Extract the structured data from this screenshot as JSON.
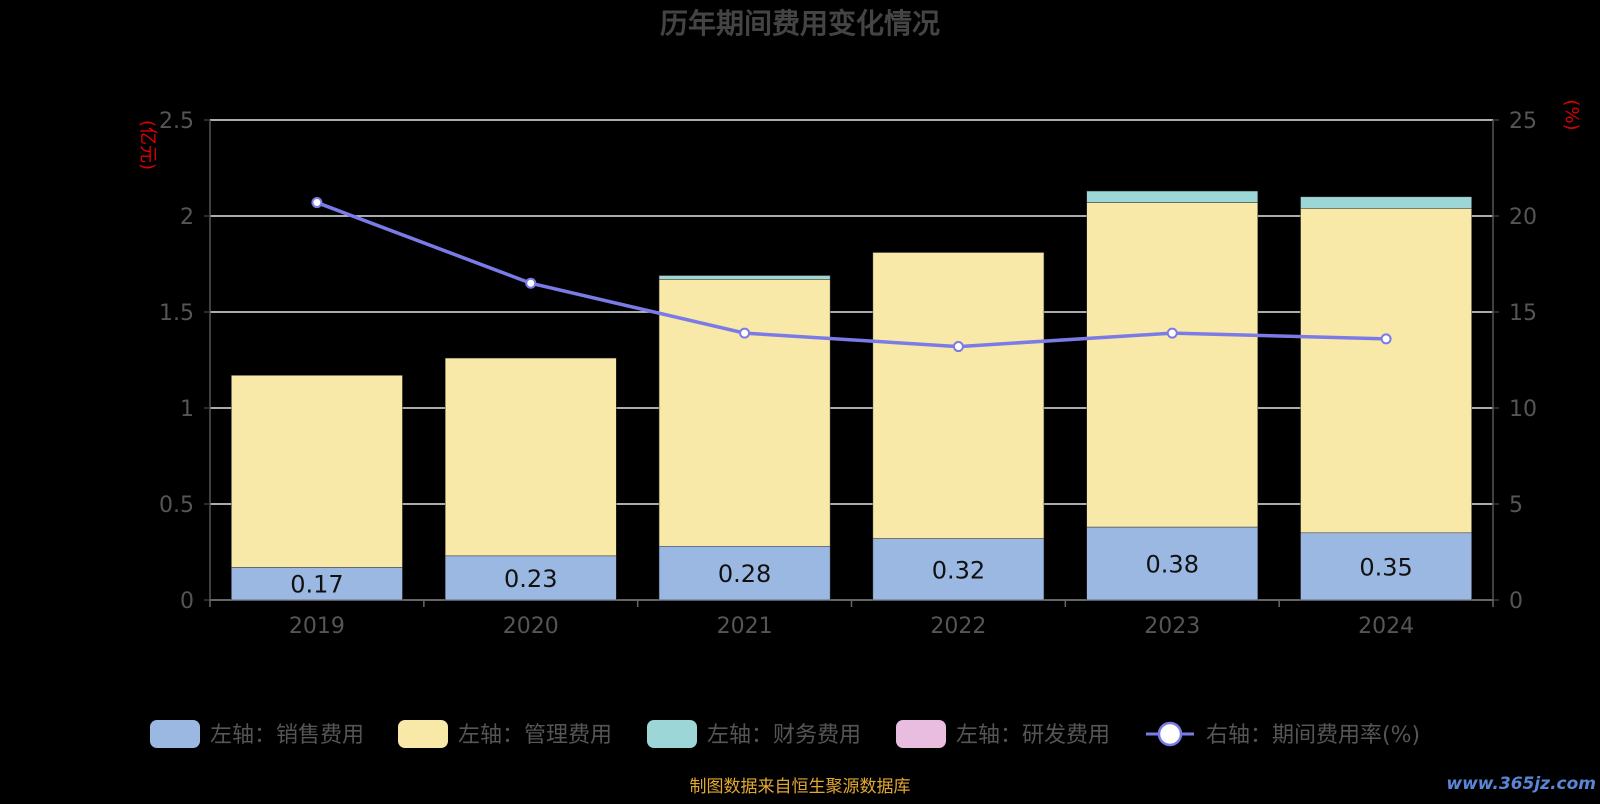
{
  "watermark": "www.365jz.com",
  "chart_data": {
    "type": "bar",
    "title": "历年期间费用变化情况",
    "source": "制图数据来自恒生聚源数据库",
    "categories": [
      "2019",
      "2020",
      "2021",
      "2022",
      "2023",
      "2024"
    ],
    "left_axis": {
      "unit": "(亿元)",
      "ylim": [
        0,
        2.5
      ],
      "ticks": [
        "0",
        "0.5",
        "1",
        "1.5",
        "2",
        "2.5"
      ]
    },
    "right_axis": {
      "unit": "(%)",
      "ylim": [
        0,
        25
      ],
      "ticks": [
        "0",
        "5",
        "10",
        "15",
        "20",
        "25"
      ]
    },
    "series": [
      {
        "name": "左轴：销售费用",
        "kind": "bar",
        "axis": "left",
        "stack": "cost",
        "color": "#9bb8e3",
        "values": [
          0.17,
          0.23,
          0.28,
          0.32,
          0.38,
          0.35
        ],
        "labels": [
          "0.17",
          "0.23",
          "0.28",
          "0.32",
          "0.38",
          "0.35"
        ]
      },
      {
        "name": "左轴：管理费用",
        "kind": "bar",
        "axis": "left",
        "stack": "cost",
        "color": "#f9e9a8",
        "values": [
          1.0,
          1.03,
          1.39,
          1.49,
          1.69,
          1.69
        ]
      },
      {
        "name": "左轴：财务费用",
        "kind": "bar",
        "axis": "left",
        "stack": "cost",
        "color": "#9dd6d6",
        "values": [
          0.0,
          0.0,
          0.02,
          0.0,
          0.06,
          0.06
        ]
      },
      {
        "name": "左轴：研发费用",
        "kind": "bar",
        "axis": "left",
        "stack": "cost",
        "color": "#e8bddf",
        "values": [
          0,
          0,
          0,
          0,
          0,
          0
        ]
      },
      {
        "name": "右轴：期间费用率(%)",
        "kind": "line",
        "axis": "right",
        "color": "#7b7be8",
        "values": [
          20.7,
          16.5,
          13.9,
          13.2,
          13.9,
          13.6
        ]
      }
    ],
    "grid": true,
    "legend": "bottom"
  }
}
